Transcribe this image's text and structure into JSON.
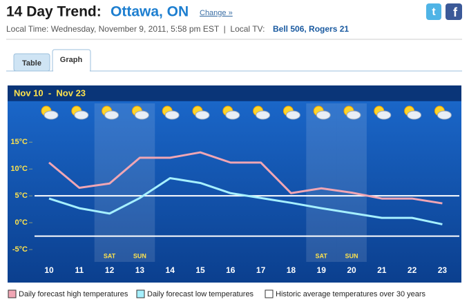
{
  "header": {
    "title": "14 Day Trend:",
    "location": "Ottawa, ON",
    "change_link": "Change »",
    "local_info": "Local Time: Wednesday, November 9, 2011, 5:58 pm EST  |  Local TV: ",
    "local_tv": "Bell 506, Rogers 21"
  },
  "tabs": [
    "Table",
    "Graph"
  ],
  "chart_data": {
    "type": "line",
    "title": "Nov 10  -  Nov 23",
    "categories": [
      "10",
      "11",
      "12",
      "13",
      "14",
      "15",
      "16",
      "17",
      "18",
      "19",
      "20",
      "21",
      "22",
      "23"
    ],
    "day_labels": [
      null,
      null,
      "SAT",
      "SUN",
      null,
      null,
      null,
      null,
      null,
      "SAT",
      "SUN",
      null,
      null,
      null
    ],
    "series": [
      {
        "name": "Daily forecast high temperatures",
        "color": "#f0a6b4",
        "values": [
          11.2,
          6.5,
          7.3,
          12.1,
          12.1,
          13.1,
          11.2,
          11.2,
          5.5,
          6.4,
          5.6,
          4.5,
          4.5,
          3.6
        ]
      },
      {
        "name": "Daily forecast low temperatures",
        "color": "#a6f0ff",
        "values": [
          4.5,
          2.7,
          1.7,
          4.6,
          8.3,
          7.4,
          5.5,
          4.6,
          3.7,
          2.7,
          1.8,
          0.9,
          0.9,
          -0.3
        ]
      }
    ],
    "reference": {
      "name": "Historic average temperatures over 30 years",
      "color": "#ffffff",
      "values": [
        5,
        -2.5
      ]
    },
    "ylim": [
      -7.3,
      17.6
    ],
    "yticks": [
      {
        "value": -5,
        "label": "-5°C"
      },
      {
        "value": 0,
        "label": "0°C"
      },
      {
        "value": 5,
        "label": "5°C"
      },
      {
        "value": 10,
        "label": "10°C"
      },
      {
        "value": 15,
        "label": "15°C"
      }
    ]
  }
}
